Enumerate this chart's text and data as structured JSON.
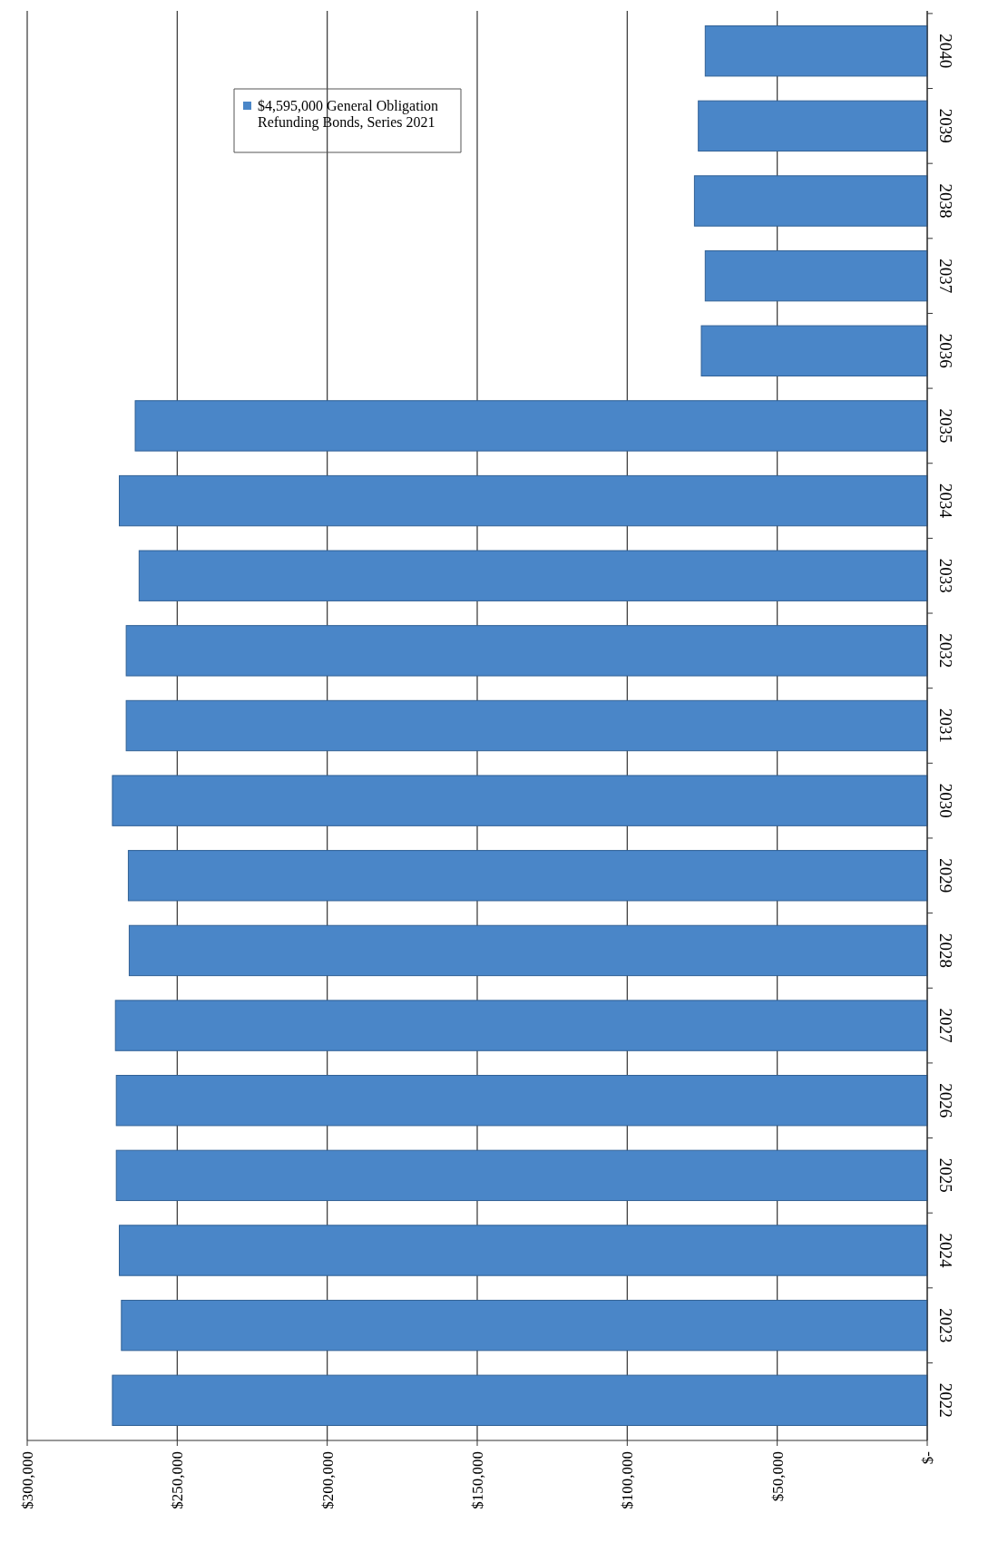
{
  "chart_data": {
    "type": "bar",
    "orientation": "horizontal",
    "categories": [
      "2040",
      "2039",
      "2038",
      "2037",
      "2036",
      "2035",
      "2034",
      "2033",
      "2032",
      "2031",
      "2030",
      "2029",
      "2028",
      "2027",
      "2026",
      "2025",
      "2024",
      "2023",
      "2022"
    ],
    "series": [
      {
        "name": "$4,595,000 General Obligation Refunding Bonds, Series 2021",
        "color": "#4a86c8",
        "values": [
          74000,
          76300,
          77600,
          74000,
          75300,
          264000,
          269300,
          262700,
          267000,
          267000,
          271600,
          266300,
          266000,
          270600,
          270300,
          270300,
          269300,
          268600,
          271600
        ]
      }
    ],
    "xlim": [
      300000,
      0
    ],
    "xticks": [
      {
        "value": 300000,
        "label": "$300,000"
      },
      {
        "value": 250000,
        "label": "$250,000"
      },
      {
        "value": 200000,
        "label": "$200,000"
      },
      {
        "value": 150000,
        "label": "$150,000"
      },
      {
        "value": 100000,
        "label": "$100,000"
      },
      {
        "value": 50000,
        "label": "$50,000"
      },
      {
        "value": 0,
        "label": "$-"
      }
    ],
    "grid": "x",
    "legend": "top left"
  }
}
